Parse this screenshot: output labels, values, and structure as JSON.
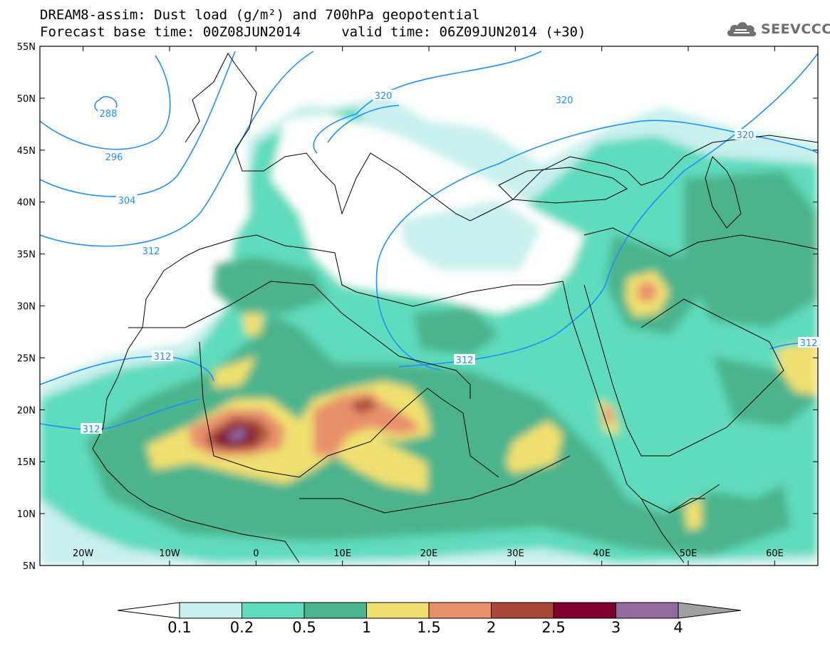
{
  "header": {
    "title_line1": "DREAM8-assim: Dust load (g/m²) and 700hPa geopotential",
    "title_line2": "Forecast base time: 00Z08JUN2014     valid time: 06Z09JUN2014 (+30)"
  },
  "logo": {
    "text": "SEEVCCC",
    "icon": "cloud-logo-icon"
  },
  "map": {
    "lat_range": [
      5,
      55
    ],
    "lon_range": [
      -25,
      65
    ],
    "lat_ticks": [
      "5N",
      "10N",
      "15N",
      "20N",
      "25N",
      "30N",
      "35N",
      "40N",
      "45N",
      "50N",
      "55N"
    ],
    "lon_ticks": [
      "20W",
      "10W",
      "0",
      "10E",
      "20E",
      "30E",
      "40E",
      "50E",
      "60E"
    ],
    "contour_labels": [
      "288",
      "296",
      "304",
      "312",
      "320",
      "320",
      "320",
      "312",
      "312",
      "312",
      "312"
    ]
  },
  "colorbar": {
    "thresholds": [
      "0.1",
      "0.2",
      "0.5",
      "1",
      "1.5",
      "2",
      "2.5",
      "3",
      "4"
    ],
    "colors": [
      "#c8f0ec",
      "#5fdcbc",
      "#4cb48c",
      "#f0e070",
      "#e8906c",
      "#a84838",
      "#800030",
      "#906aa0"
    ],
    "end_low": "#ffffff",
    "end_high": "#a0a0a0"
  },
  "colors": {
    "contour": "#1e90ff",
    "coast": "#000000"
  }
}
